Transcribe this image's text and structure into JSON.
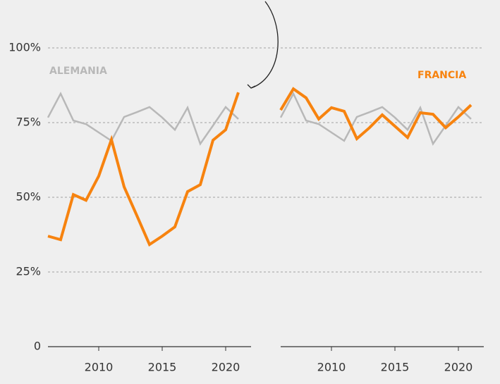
{
  "chart_data": [
    {
      "type": "line",
      "x": [
        2006,
        2007,
        2008,
        2009,
        2010,
        2011,
        2012,
        2013,
        2014,
        2015,
        2016,
        2017,
        2018,
        2019,
        2020,
        2021
      ],
      "xlim": [
        2006,
        2022
      ],
      "xticks": [
        2010,
        2015,
        2020
      ],
      "ylim": [
        0,
        100
      ],
      "yticks": [
        0,
        {
          "value": 25,
          "label": "25%"
        },
        {
          "value": 50,
          "label": "50%"
        },
        {
          "value": 75,
          "label": "75%"
        },
        {
          "value": 100,
          "label": "100%"
        }
      ],
      "grid": true,
      "series": [
        {
          "name": "ALEMANIA",
          "color": "#b8b8b8",
          "values": [
            76.7,
            84.7,
            75.7,
            74.5,
            71.7,
            68.9,
            76.9,
            78.5,
            80.2,
            76.7,
            72.6,
            80,
            67.9,
            74,
            80.2,
            76.2
          ]
        },
        {
          "color": "#f7830f",
          "values": [
            37,
            35.8,
            50.9,
            49,
            57.1,
            69.3,
            53.5,
            43.9,
            34.2,
            37,
            40.1,
            51.9,
            54.2,
            69.1,
            72.6,
            85.1
          ]
        }
      ]
    },
    {
      "type": "line",
      "x": [
        2006,
        2007,
        2008,
        2009,
        2010,
        2011,
        2012,
        2013,
        2014,
        2015,
        2016,
        2017,
        2018,
        2019,
        2020,
        2021
      ],
      "xlim": [
        2006,
        2022
      ],
      "xticks": [
        2010,
        2015,
        2020
      ],
      "ylim": [
        0,
        100
      ],
      "yticks": [
        0,
        25,
        50,
        75,
        100
      ],
      "grid": true,
      "series": [
        {
          "color": "#b8b8b8",
          "values": [
            76.7,
            84.7,
            75.7,
            74.5,
            71.7,
            68.9,
            76.9,
            78.5,
            80.2,
            76.7,
            72.6,
            80,
            67.9,
            74,
            80.2,
            76.2
          ]
        },
        {
          "name": "FRANCIA",
          "color": "#f7830f",
          "values": [
            79.2,
            86.3,
            83.3,
            76.2,
            80,
            78.8,
            69.6,
            73.3,
            77.6,
            73.8,
            70,
            78.3,
            77.8,
            73.3,
            76.9,
            80.9
          ]
        }
      ]
    }
  ]
}
